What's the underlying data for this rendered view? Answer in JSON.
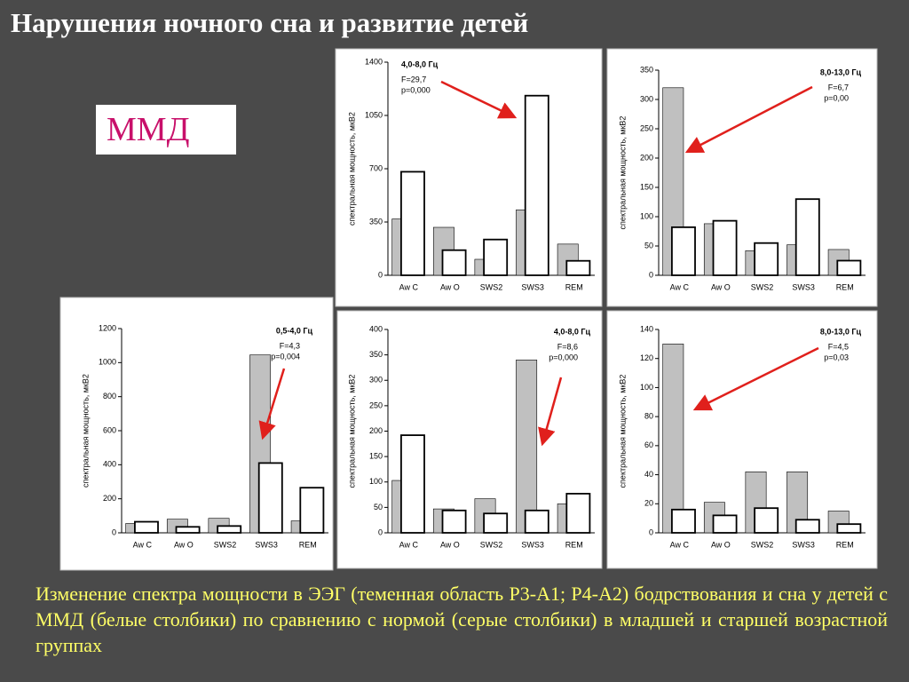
{
  "title": "Нарушения ночного сна и развитие детей",
  "label": "ММД",
  "caption": "Изменение спектра мощности в ЭЭГ (теменная область P3-A1; P4-A2) бодрствования и сна у детей с ММД (белые столбики) по сравнению с нормой (серые столбики) в младшей и старшей возрастной группах",
  "chart_data": [
    {
      "type": "bar",
      "title": "4,0-8,0 Гц",
      "annotations": [
        "F=29,7",
        "p=0,000"
      ],
      "ylabel": "спектральная мощность, мкВ2",
      "categories": [
        "Aw C",
        "Aw O",
        "SWS2",
        "SWS3",
        "REM"
      ],
      "ylim": [
        0,
        1400
      ],
      "yticks": [
        0,
        350,
        700,
        1050,
        1400
      ],
      "series": [
        {
          "color": "#c0c0c0",
          "values": [
            370,
            315,
            105,
            430,
            205
          ]
        },
        {
          "color": "#ffffff",
          "values": [
            680,
            165,
            235,
            1180,
            95
          ]
        }
      ]
    },
    {
      "type": "bar",
      "title": "8,0-13,0 Гц",
      "annotations": [
        "F=6,7",
        "p=0,00"
      ],
      "ylabel": "спектральная мощность, мкВ2",
      "categories": [
        "Aw C",
        "Aw O",
        "SWS2",
        "SWS3",
        "REM"
      ],
      "ylim": [
        0,
        350
      ],
      "yticks": [
        0,
        50,
        100,
        150,
        200,
        250,
        300,
        350
      ],
      "series": [
        {
          "color": "#c0c0c0",
          "values": [
            320,
            88,
            42,
            52,
            44
          ]
        },
        {
          "color": "#ffffff",
          "values": [
            82,
            93,
            55,
            130,
            25
          ]
        }
      ]
    },
    {
      "type": "bar",
      "title": "0,5-4,0 Гц",
      "annotations": [
        "F=4,3",
        "p=0,004"
      ],
      "ylabel": "спектральная мощность, мкВ2",
      "categories": [
        "Aw C",
        "Aw O",
        "SWS2",
        "SWS3",
        "REM"
      ],
      "ylim": [
        0,
        1200
      ],
      "yticks": [
        0,
        200,
        400,
        600,
        800,
        1000,
        1200
      ],
      "series": [
        {
          "color": "#c0c0c0",
          "values": [
            55,
            80,
            85,
            1045,
            70
          ]
        },
        {
          "color": "#ffffff",
          "values": [
            65,
            35,
            40,
            410,
            265
          ]
        }
      ]
    },
    {
      "type": "bar",
      "title": "4,0-8,0 Гц",
      "annotations": [
        "F=8,6",
        "p=0,000"
      ],
      "ylabel": "спектральная мощность, мкВ2",
      "categories": [
        "Aw C",
        "Aw O",
        "SWS2",
        "SWS3",
        "REM"
      ],
      "ylim": [
        0,
        400
      ],
      "yticks": [
        0,
        50,
        100,
        150,
        200,
        250,
        300,
        350,
        400
      ],
      "series": [
        {
          "color": "#c0c0c0",
          "values": [
            103,
            47,
            67,
            340,
            57
          ]
        },
        {
          "color": "#ffffff",
          "values": [
            192,
            44,
            38,
            44,
            77
          ]
        }
      ]
    },
    {
      "type": "bar",
      "title": "8,0-13,0 Гц",
      "annotations": [
        "F=4,5",
        "p=0,03"
      ],
      "ylabel": "спектральная мощность, мкВ2",
      "categories": [
        "Aw C",
        "Aw O",
        "SWS2",
        "SWS3",
        "REM"
      ],
      "ylim": [
        0,
        140
      ],
      "yticks": [
        0,
        20,
        40,
        60,
        80,
        100,
        120,
        140
      ],
      "series": [
        {
          "color": "#c0c0c0",
          "values": [
            130,
            21,
            42,
            42,
            15
          ]
        },
        {
          "color": "#ffffff",
          "values": [
            16,
            12,
            17,
            9,
            6
          ]
        }
      ]
    }
  ]
}
